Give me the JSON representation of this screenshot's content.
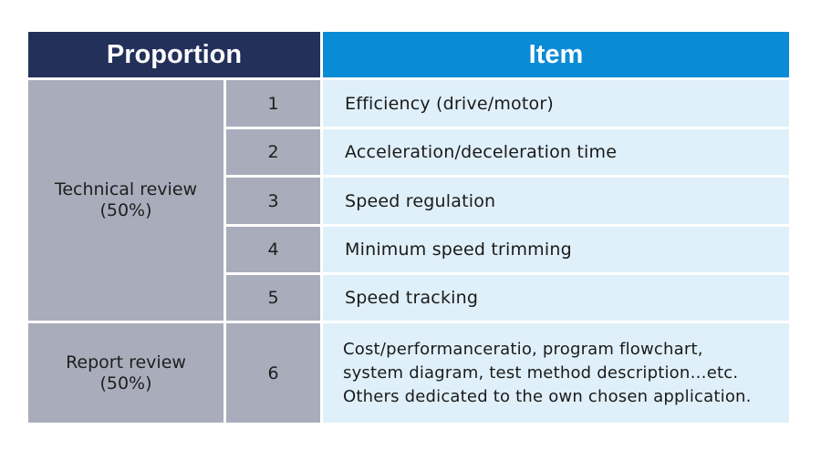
{
  "header": {
    "proportion": "Proportion",
    "item": "Item"
  },
  "groups": [
    {
      "label": "Technical review",
      "percent": "(50%)"
    },
    {
      "label": "Report review",
      "percent": "(50%)"
    }
  ],
  "rows": [
    {
      "num": "1",
      "item": "Efficiency (drive/motor)"
    },
    {
      "num": "2",
      "item": "Acceleration/deceleration time"
    },
    {
      "num": "3",
      "item": "Speed regulation"
    },
    {
      "num": "4",
      "item": "Minimum speed trimming"
    },
    {
      "num": "5",
      "item": "Speed tracking"
    },
    {
      "num": "6",
      "item_lines": [
        "Cost/performanceratio, program flowchart,",
        "system diagram, test method description…etc.",
        "Others dedicated to the own chosen application."
      ]
    }
  ],
  "colors": {
    "header_proportion": "#22305a",
    "header_item": "#0a8bd6",
    "gray_cell": "#a9acbb",
    "item_cell": "#dff0fa"
  }
}
